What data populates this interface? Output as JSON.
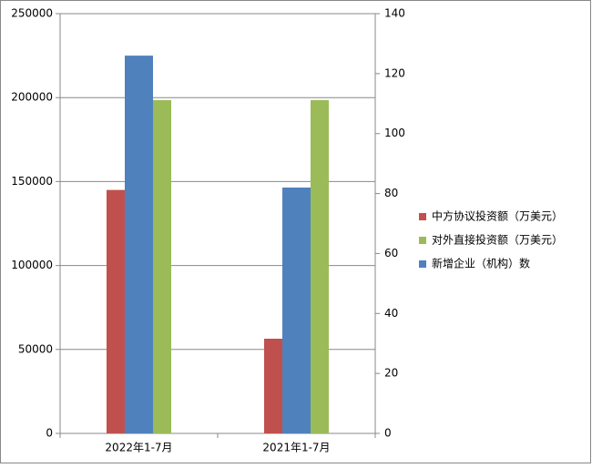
{
  "chart_data": {
    "type": "bar",
    "categories": [
      "2022年1-7月",
      "2021年1-7月"
    ],
    "series": [
      {
        "name": "中方协议投资额（万美元）",
        "color": "#c0504d",
        "values": [
          145000,
          56400
        ]
      },
      {
        "name": "对外直接投资额（万美元）",
        "color": "#9bbb59",
        "values": [
          198500,
          198500
        ]
      },
      {
        "name": "新增企业（机构）数",
        "color": "#4f81bd",
        "values": [
          126,
          82
        ],
        "axis": "y2"
      }
    ],
    "ylim": [
      0,
      250000
    ],
    "yticks": [
      0,
      50000,
      100000,
      150000,
      200000,
      250000
    ],
    "y2lim": [
      0,
      140
    ],
    "y2ticks": [
      0,
      20,
      40,
      60,
      80,
      100,
      120,
      140
    ],
    "grid": true,
    "legend": "right"
  }
}
